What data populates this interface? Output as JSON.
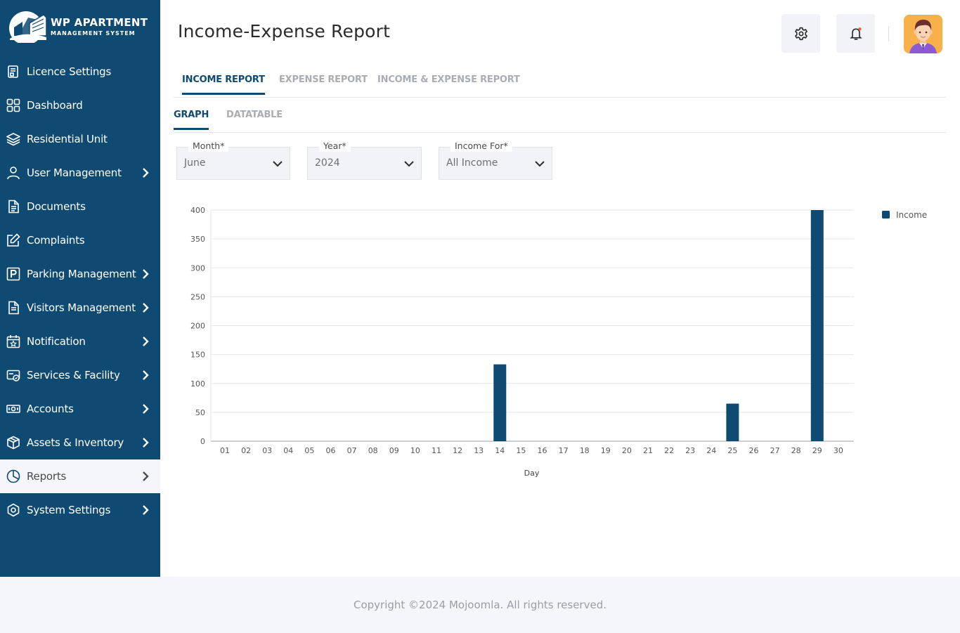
{
  "brand": {
    "title": "WP APARTMENT",
    "subtitle": "MANAGEMENT SYSTEM"
  },
  "sidebar": {
    "items": [
      {
        "label": "Licence Settings",
        "icon": "licence-icon",
        "has_chevron": false
      },
      {
        "label": "Dashboard",
        "icon": "dashboard-grid-icon",
        "has_chevron": false
      },
      {
        "label": "Residential Unit",
        "icon": "layers-icon",
        "has_chevron": false
      },
      {
        "label": "User Management",
        "icon": "user-icon",
        "has_chevron": true
      },
      {
        "label": "Documents",
        "icon": "document-icon",
        "has_chevron": false
      },
      {
        "label": "Complaints",
        "icon": "edit-icon",
        "has_chevron": false
      },
      {
        "label": "Parking Management",
        "icon": "parking-icon",
        "has_chevron": true
      },
      {
        "label": "Visitors Management",
        "icon": "visitor-doc-icon",
        "has_chevron": true
      },
      {
        "label": "Notification",
        "icon": "calendar-star-icon",
        "has_chevron": true
      },
      {
        "label": "Services & Facility",
        "icon": "service-card-icon",
        "has_chevron": true
      },
      {
        "label": "Accounts",
        "icon": "money-icon",
        "has_chevron": true
      },
      {
        "label": "Assets & Inventory",
        "icon": "box-icon",
        "has_chevron": true
      },
      {
        "label": "Reports",
        "icon": "pie-chart-icon",
        "has_chevron": true,
        "active": true
      },
      {
        "label": "System Settings",
        "icon": "settings-hex-icon",
        "has_chevron": true
      }
    ]
  },
  "header": {
    "title": "Income-Expense Report",
    "settings_icon": "gear-icon",
    "notification_icon": "bell-icon",
    "notification_dot_color": "#f05a4f"
  },
  "tabs": [
    {
      "label": "INCOME REPORT",
      "active": true
    },
    {
      "label": "EXPENSE REPORT",
      "active": false
    },
    {
      "label": "INCOME & EXPENSE REPORT",
      "active": false
    }
  ],
  "subtabs": [
    {
      "label": "GRAPH",
      "active": true
    },
    {
      "label": "DATATABLE",
      "active": false
    }
  ],
  "filters": {
    "month": {
      "label": "Month*",
      "value": "June"
    },
    "year": {
      "label": "Year*",
      "value": "2024"
    },
    "income_for": {
      "label": "Income For*",
      "value": "All Income"
    }
  },
  "chart_data": {
    "type": "bar",
    "categories": [
      "01",
      "02",
      "03",
      "04",
      "05",
      "06",
      "07",
      "08",
      "09",
      "10",
      "11",
      "12",
      "13",
      "14",
      "15",
      "16",
      "17",
      "18",
      "19",
      "20",
      "21",
      "22",
      "23",
      "24",
      "25",
      "26",
      "27",
      "28",
      "29",
      "30"
    ],
    "series": [
      {
        "name": "Income",
        "color": "#0f4a73",
        "values": [
          0,
          0,
          0,
          0,
          0,
          0,
          0,
          0,
          0,
          0,
          0,
          0,
          0,
          133,
          0,
          0,
          0,
          0,
          0,
          0,
          0,
          0,
          0,
          0,
          65,
          0,
          0,
          0,
          400,
          0
        ]
      }
    ],
    "yticks": [
      0,
      50,
      100,
      150,
      200,
      250,
      300,
      350,
      400
    ],
    "ylim": [
      0,
      400
    ],
    "xlabel": "Day",
    "ylabel": "",
    "grid": true,
    "legend": "top-right"
  },
  "footer": {
    "copyright": "Copyright ©2024 Mojoomla. All rights reserved."
  }
}
